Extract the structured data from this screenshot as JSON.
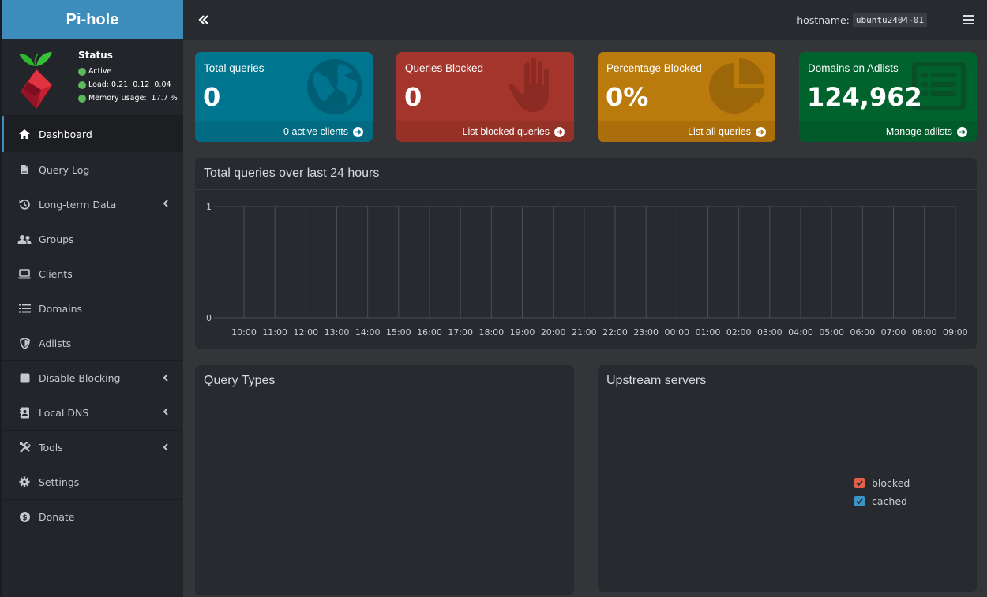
{
  "brand": {
    "title": "Pi-hole"
  },
  "status": {
    "title": "Status",
    "state": "Active",
    "load_label": "Load:",
    "load_values": "0.21  0.12  0.04",
    "memory_label": "Memory usage:",
    "memory_value": "17.7 %",
    "dot_color": "#5cb85c"
  },
  "sidebar": {
    "items": [
      {
        "label": "Dashboard",
        "icon": "home-icon",
        "active": true
      },
      {
        "label": "Query Log",
        "icon": "file-icon"
      },
      {
        "label": "Long-term Data",
        "icon": "history-icon",
        "submenu": true
      },
      {
        "label": "Groups",
        "icon": "users-icon"
      },
      {
        "label": "Clients",
        "icon": "laptop-icon"
      },
      {
        "label": "Domains",
        "icon": "list-icon"
      },
      {
        "label": "Adlists",
        "icon": "shield-icon"
      },
      {
        "label": "Disable Blocking",
        "icon": "stop-icon",
        "submenu": true
      },
      {
        "label": "Local DNS",
        "icon": "address-book-icon",
        "submenu": true
      },
      {
        "label": "Tools",
        "icon": "tools-icon",
        "submenu": true
      },
      {
        "label": "Settings",
        "icon": "gear-icon"
      },
      {
        "label": "Donate",
        "icon": "donate-icon"
      }
    ]
  },
  "header": {
    "hostname_label": "hostname:",
    "hostname_value": "ubuntu2404-01"
  },
  "boxes": [
    {
      "label": "Total queries",
      "value": "0",
      "footer": "0 active clients",
      "color": "#00758f",
      "footer_color": "#006b82",
      "icon": "globe-icon"
    },
    {
      "label": "Queries Blocked",
      "value": "0",
      "footer": "List blocked queries",
      "color": "#a4352c",
      "footer_color": "#963128",
      "icon": "hand-icon"
    },
    {
      "label": "Percentage Blocked",
      "value": "0%",
      "footer": "List all queries",
      "color": "#bb7a0c",
      "footer_color": "#aa6f0b",
      "icon": "pie-chart-icon"
    },
    {
      "label": "Domains on Adlists",
      "value": "124,962",
      "footer": "Manage adlists",
      "color": "#00622d",
      "footer_color": "#005a29",
      "icon": "list-alt-icon"
    }
  ],
  "panels": {
    "history_title": "Total queries over last 24 hours",
    "query_types_title": "Query Types",
    "upstream_title": "Upstream servers"
  },
  "chart_data": {
    "type": "bar",
    "title": "Total queries over last 24 hours",
    "categories": [
      "10:00",
      "11:00",
      "12:00",
      "13:00",
      "14:00",
      "15:00",
      "16:00",
      "17:00",
      "18:00",
      "19:00",
      "20:00",
      "21:00",
      "22:00",
      "23:00",
      "00:00",
      "01:00",
      "02:00",
      "03:00",
      "04:00",
      "05:00",
      "06:00",
      "07:00",
      "08:00",
      "09:00"
    ],
    "values": [
      0,
      0,
      0,
      0,
      0,
      0,
      0,
      0,
      0,
      0,
      0,
      0,
      0,
      0,
      0,
      0,
      0,
      0,
      0,
      0,
      0,
      0,
      0,
      0
    ],
    "ylim": [
      0,
      1
    ],
    "yticks": [
      "0",
      "1"
    ],
    "grid": true
  },
  "upstream_legend": [
    {
      "label": "blocked",
      "color": "#e0604a"
    },
    {
      "label": "cached",
      "color": "#3a96c8"
    }
  ]
}
